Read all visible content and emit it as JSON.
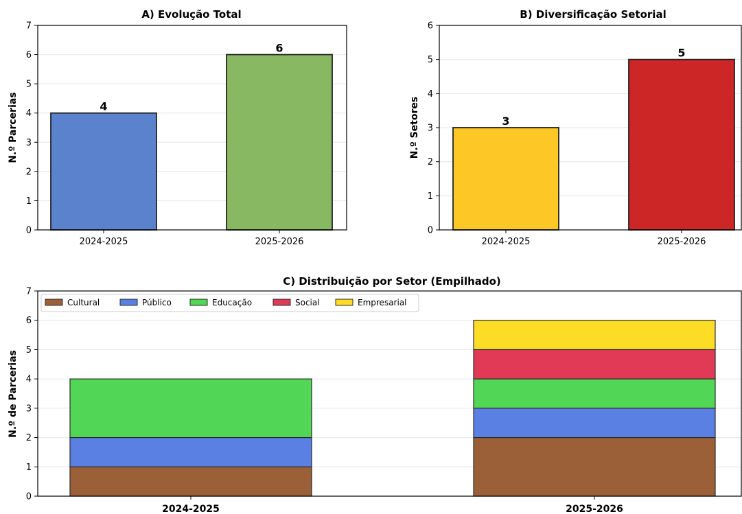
{
  "chart_data": [
    {
      "type": "bar",
      "title": "A) Evolução Total",
      "ylabel": "N.º Parcerias",
      "xlabel": "",
      "categories": [
        "2024-2025",
        "2025-2026"
      ],
      "values": [
        4,
        6
      ],
      "data_labels": [
        "4",
        "6"
      ],
      "colors": [
        "#5b82cc",
        "#88b862"
      ],
      "ylim": [
        0,
        7
      ],
      "yticks": [
        "0",
        "1",
        "2",
        "3",
        "4",
        "5",
        "6",
        "7"
      ],
      "grid": true
    },
    {
      "type": "bar",
      "title": "B) Diversificação Setorial",
      "ylabel": "N.º Setores",
      "xlabel": "",
      "categories": [
        "2024-2025",
        "2025-2026"
      ],
      "values": [
        3,
        5
      ],
      "data_labels": [
        "3",
        "5"
      ],
      "colors": [
        "#fdc726",
        "#cc2626"
      ],
      "ylim": [
        0,
        6
      ],
      "yticks": [
        "0",
        "1",
        "2",
        "3",
        "4",
        "5",
        "6"
      ],
      "grid": true
    },
    {
      "type": "bar",
      "stacked": true,
      "title": "C) Distribuição por Setor (Empilhado)",
      "ylabel": "N.º de Parcerias",
      "xlabel": "",
      "categories": [
        "2024-2025",
        "2025-2026"
      ],
      "series": [
        {
          "name": "Cultural",
          "values": [
            1,
            2
          ],
          "color": "#9c6038"
        },
        {
          "name": "Público",
          "values": [
            1,
            1
          ],
          "color": "#5b80e3"
        },
        {
          "name": "Educação",
          "values": [
            2,
            1
          ],
          "color": "#52d655"
        },
        {
          "name": "Social",
          "values": [
            0,
            1
          ],
          "color": "#e03a57"
        },
        {
          "name": "Empresarial",
          "values": [
            0,
            1
          ],
          "color": "#fddc26"
        }
      ],
      "ylim": [
        0,
        7
      ],
      "yticks": [
        "0",
        "1",
        "2",
        "3",
        "4",
        "5",
        "6",
        "7"
      ],
      "legend_position": "top-left",
      "grid": true
    }
  ]
}
